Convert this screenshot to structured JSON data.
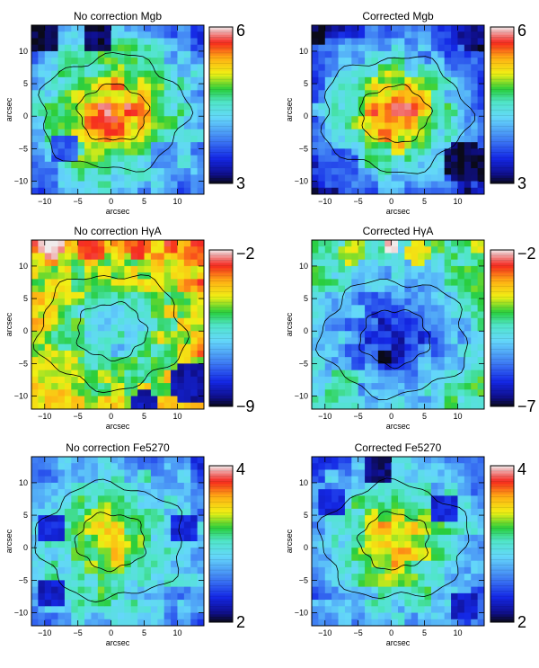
{
  "chart_data": [
    {
      "type": "heatmap",
      "title": "No correction Mgb",
      "xlabel": "arcsec",
      "ylabel": "arcsec",
      "xticks": [
        -10,
        -5,
        0,
        5,
        10
      ],
      "yticks": [
        10,
        5,
        0,
        -5,
        -10
      ],
      "xlim": [
        -12,
        14
      ],
      "ylim": [
        -12,
        14
      ],
      "colorbar": {
        "min": 3,
        "max": 6,
        "min_label": "3",
        "max_label": "6"
      },
      "center": [
        0.3,
        0.5
      ],
      "peak": 5.6,
      "slope": 0.11,
      "features": [
        {
          "x": -10,
          "y": 12,
          "value": 3.05,
          "r": 2.2
        },
        {
          "x": -2,
          "y": 12,
          "value": 3.1,
          "r": 2.2
        },
        {
          "x": -7,
          "y": -5,
          "value": 3.7,
          "r": 2.5
        },
        {
          "x": 8,
          "y": -6,
          "value": 3.9,
          "r": 2.5
        },
        {
          "x": -10,
          "y": -9,
          "value": 3.8,
          "r": 2.2
        }
      ]
    },
    {
      "type": "heatmap",
      "title": "Corrected Mgb",
      "xlabel": "arcsec",
      "ylabel": "arcsec",
      "xticks": [
        -10,
        -5,
        0,
        5,
        10
      ],
      "yticks": [
        10,
        5,
        0,
        -5,
        -10
      ],
      "xlim": [
        -12,
        14
      ],
      "ylim": [
        -12,
        14
      ],
      "colorbar": {
        "min": 3,
        "max": 6,
        "min_label": "3",
        "max_label": "6"
      },
      "center": [
        0.5,
        0.3
      ],
      "peak": 5.6,
      "slope": 0.14,
      "features": [
        {
          "x": -11,
          "y": 12,
          "value": 3.0,
          "r": 1.5
        },
        {
          "x": 11,
          "y": -7,
          "value": 3.05,
          "r": 3
        },
        {
          "x": 12,
          "y": 12,
          "value": 3.2,
          "r": 2
        },
        {
          "x": -8,
          "y": -8,
          "value": 3.7,
          "r": 3
        }
      ]
    },
    {
      "type": "heatmap",
      "title": "No correction HγA",
      "xlabel": "arcsec",
      "ylabel": "arcsec",
      "xticks": [
        -10,
        -5,
        0,
        5,
        10
      ],
      "yticks": [
        10,
        5,
        0,
        -5,
        -10
      ],
      "xlim": [
        -12,
        14
      ],
      "ylim": [
        -12,
        14
      ],
      "colorbar": {
        "min": -9,
        "max": -2,
        "min_label": "−9",
        "max_label": "−2"
      },
      "center": [
        0,
        0
      ],
      "peak": -6.0,
      "slope": -0.16,
      "features": [
        {
          "x": -9,
          "y": 13,
          "value": -2.1,
          "r": 1.8
        },
        {
          "x": -3,
          "y": 13,
          "value": -2.8,
          "r": 2.5
        },
        {
          "x": 4,
          "y": 13,
          "value": -2.8,
          "r": 2
        },
        {
          "x": 12,
          "y": -8,
          "value": -8.4,
          "r": 3.5
        },
        {
          "x": 5,
          "y": -11,
          "value": -8.3,
          "r": 2
        },
        {
          "x": 3,
          "y": -1,
          "value": -9,
          "r": 0.5
        },
        {
          "x": -8,
          "y": -6,
          "value": -4.2,
          "r": 3
        }
      ]
    },
    {
      "type": "heatmap",
      "title": "Corrected HγA",
      "xlabel": "arcsec",
      "ylabel": "arcsec",
      "xticks": [
        -10,
        -5,
        0,
        5,
        10
      ],
      "yticks": [
        10,
        5,
        0,
        -5,
        -10
      ],
      "xlim": [
        -12,
        14
      ],
      "ylim": [
        -12,
        14
      ],
      "colorbar": {
        "min": -7,
        "max": -2,
        "min_label": "−7",
        "max_label": "−2"
      },
      "center": [
        0.5,
        -1
      ],
      "peak": -6.3,
      "slope": -0.13,
      "features": [
        {
          "x": 0,
          "y": 13,
          "value": -2.1,
          "r": 1.5
        },
        {
          "x": -6,
          "y": 12,
          "value": -3.6,
          "r": 2
        },
        {
          "x": 4,
          "y": 12,
          "value": -3.5,
          "r": 2
        },
        {
          "x": 12,
          "y": 8,
          "value": -4.0,
          "r": 2.5
        },
        {
          "x": -1,
          "y": -4,
          "value": -7,
          "r": 0.8
        },
        {
          "x": -7,
          "y": -8,
          "value": -4.3,
          "r": 2.5
        }
      ]
    },
    {
      "type": "heatmap",
      "title": "No correction Fe5270",
      "xlabel": "arcsec",
      "ylabel": "arcsec",
      "xticks": [
        -10,
        -5,
        0,
        5,
        10
      ],
      "yticks": [
        10,
        5,
        0,
        -5,
        -10
      ],
      "xlim": [
        -12,
        14
      ],
      "ylim": [
        -12,
        14
      ],
      "colorbar": {
        "min": 2,
        "max": 4,
        "min_label": "2",
        "max_label": "4"
      },
      "center": [
        0,
        1
      ],
      "peak": 3.4,
      "slope": 0.05,
      "features": [
        {
          "x": -9,
          "y": 3,
          "value": 2.3,
          "r": 2.5
        },
        {
          "x": 11,
          "y": 3,
          "value": 2.3,
          "r": 2.5
        },
        {
          "x": -9,
          "y": -7,
          "value": 2.25,
          "r": 2.5
        },
        {
          "x": -4,
          "y": 12,
          "value": 2.7,
          "r": 2.5
        },
        {
          "x": 1,
          "y": -10,
          "value": 2.9,
          "r": 2
        }
      ]
    },
    {
      "type": "heatmap",
      "title": "Corrected Fe5270",
      "xlabel": "arcsec",
      "ylabel": "arcsec",
      "xticks": [
        -10,
        -5,
        0,
        5,
        10
      ],
      "yticks": [
        10,
        5,
        0,
        -5,
        -10
      ],
      "xlim": [
        -12,
        14
      ],
      "ylim": [
        -12,
        14
      ],
      "colorbar": {
        "min": 2,
        "max": 4,
        "min_label": "2",
        "max_label": "4"
      },
      "center": [
        0.5,
        1
      ],
      "peak": 3.5,
      "slope": 0.06,
      "features": [
        {
          "x": -2,
          "y": 12,
          "value": 2.1,
          "r": 2.2
        },
        {
          "x": -9,
          "y": 7,
          "value": 2.3,
          "r": 2.2
        },
        {
          "x": 11,
          "y": -9,
          "value": 2.25,
          "r": 2.5
        },
        {
          "x": 8,
          "y": 6,
          "value": 2.3,
          "r": 2.5
        },
        {
          "x": 5,
          "y": -3,
          "value": 2.9,
          "r": 1.5
        }
      ]
    }
  ]
}
